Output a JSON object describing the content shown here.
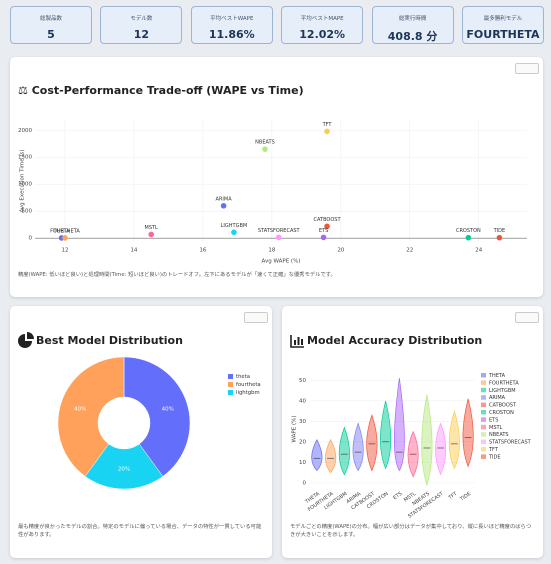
{
  "kpis": [
    {
      "label": "総製品数",
      "value": "5"
    },
    {
      "label": "モデル数",
      "value": "12"
    },
    {
      "label": "平均ベストWAPE",
      "value": "11.86%"
    },
    {
      "label": "平均ベストMAPE",
      "value": "12.02%"
    },
    {
      "label": "総実行時間",
      "value": "408.8 分"
    },
    {
      "label": "最多勝利モデル",
      "value": "FOURTHETA"
    }
  ],
  "chart_data": [
    {
      "type": "scatter",
      "title": "⚖ Cost-Performance Trade-off (WAPE vs Time)",
      "x_label": "Avg WAPE (%)",
      "y_label": "Avg Execution Time (s)",
      "categories": [
        "THETA",
        "FOURTHETA",
        "LIGHTGBM",
        "ARIMA",
        "CATBOOST",
        "CROSTON",
        "ETS",
        "MSTL",
        "NBEATS",
        "STATSFORECAST",
        "TFT",
        "TIDE"
      ],
      "x": [
        11.9,
        12.0,
        16.9,
        16.6,
        19.6,
        23.7,
        19.5,
        14.5,
        17.8,
        18.2,
        19.6,
        24.6
      ],
      "values": [
        5,
        5,
        110,
        600,
        220,
        10,
        15,
        70,
        1650,
        15,
        1980,
        10
      ],
      "colors": [
        "#636efa",
        "#FFA15A",
        "#19d3f3",
        "#636efa",
        "#EF553B",
        "#00cc96",
        "#ab63fa",
        "#FF6692",
        "#B6E880",
        "#FF97FF",
        "#FECB52",
        "#EF553B"
      ],
      "xlim": [
        11.13,
        25.4
      ],
      "ylim": [
        -70,
        2190
      ],
      "xticks": [
        12,
        14,
        16,
        18,
        20,
        22,
        24
      ],
      "yticks": [
        0,
        500,
        1000,
        1500,
        2000
      ],
      "grid": true,
      "caption": "精度(WAPE: 低いほど良い)と処理時間(Time: 短いほど良い)のトレードオフ。左下にあるモデルが「速くて正確」な優秀モデルです。"
    },
    {
      "type": "pie",
      "title": "Best Model Distribution",
      "categories": [
        "theta",
        "fourtheta",
        "lightgbm"
      ],
      "values": [
        40,
        40,
        20
      ],
      "value_labels": [
        "40%",
        "40%",
        "20%"
      ],
      "colors": [
        "#636efa",
        "#FFA15A",
        "#19d3f3"
      ],
      "legend": "right",
      "caption": "最も精度が良かったモデルの割合。特定のモデルに偏っている場合、データの特性が一貫している可能性があります。"
    },
    {
      "type": "violin",
      "title": "Model Accuracy Distribution",
      "y_label": "WAPE (%)",
      "categories": [
        "THETA",
        "FOURTHETA",
        "LIGHTGBM",
        "ARIMA",
        "CATBOOST",
        "CROSTON",
        "ETS",
        "MSTL",
        "NBEATS",
        "STATSFORECAST",
        "TFT",
        "TIDE"
      ],
      "min": [
        6,
        5,
        4,
        6,
        6,
        7,
        6,
        3,
        -1,
        4,
        7,
        8
      ],
      "median": [
        12,
        12,
        14,
        15,
        19,
        20,
        15,
        14,
        17,
        17,
        19,
        22
      ],
      "max": [
        21,
        21,
        27,
        29,
        33,
        40,
        51,
        25,
        43,
        29,
        35,
        41
      ],
      "colors": [
        "#636efa",
        "#FFA15A",
        "#00cc96",
        "#7f7ff5",
        "#EF553B",
        "#00cc96",
        "#ab63fa",
        "#FF6692",
        "#B6E880",
        "#FF97FF",
        "#FECB52",
        "#EF553B"
      ],
      "ylim": [
        -2.5,
        55
      ],
      "yticks": [
        0,
        10,
        20,
        30,
        40,
        50
      ],
      "grid": true,
      "legend": "right",
      "caption": "モデルごとの精度(WAPE)の分布。幅が広い部分はデータが集中しており、縦に長いほど精度のばらつきが大きいことを示します。"
    }
  ]
}
